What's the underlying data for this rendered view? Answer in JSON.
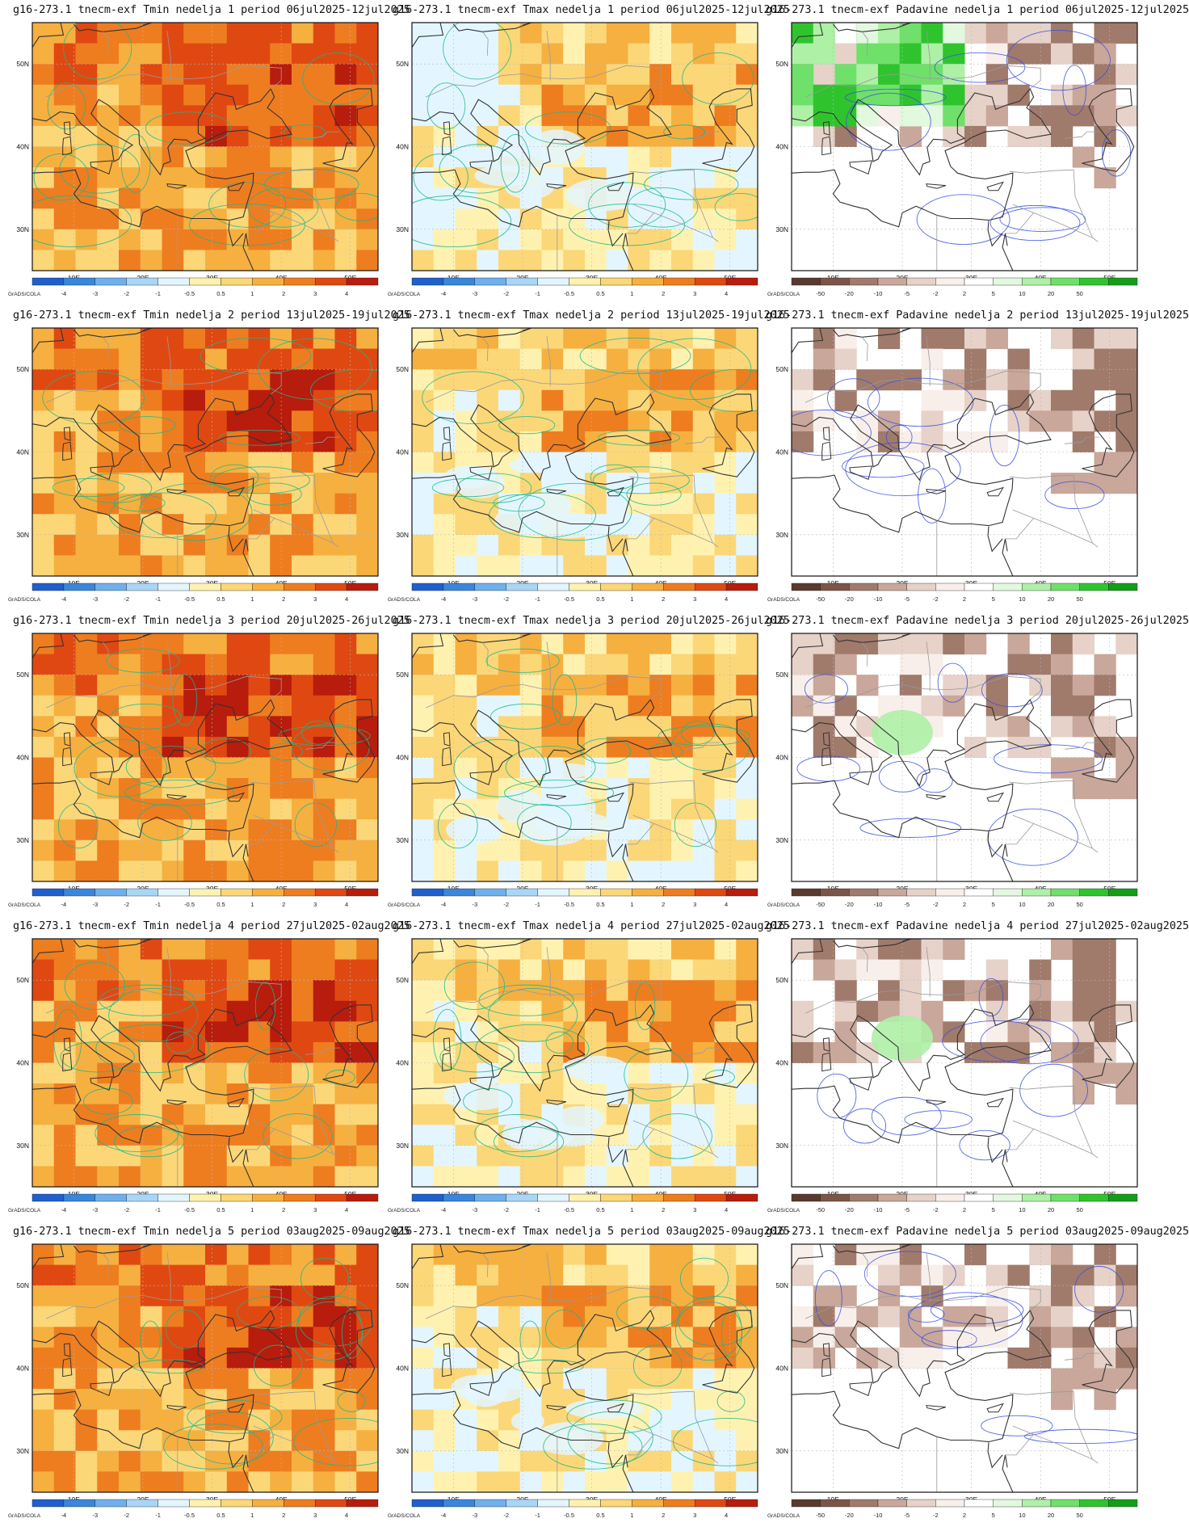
{
  "lat_labels": [
    "50N",
    "40N",
    "30N"
  ],
  "lon_labels": [
    "10E",
    "20E",
    "30E",
    "40E",
    "50E"
  ],
  "legend_credit": "GrADS/COLA",
  "temp_legend": {
    "colors": [
      "#1f5fce",
      "#3a86db",
      "#6fb0ec",
      "#a9d6f7",
      "#e3f6ff",
      "#fff2b0",
      "#fbd778",
      "#f6b040",
      "#ee7d20",
      "#e04812",
      "#b71c0c"
    ],
    "labels": [
      "-4",
      "-3",
      "-2",
      "-1",
      "-0.5",
      "0.5",
      "1",
      "2",
      "3",
      "4"
    ]
  },
  "precip_legend": {
    "colors": [
      "#5a3a2e",
      "#7d5547",
      "#a07a6b",
      "#c9a79a",
      "#e6d2c8",
      "#f8efea",
      "#ffffff",
      "#e2f8df",
      "#aef0a6",
      "#6fe06a",
      "#2fc42e",
      "#149e18"
    ],
    "labels": [
      "-50",
      "-20",
      "-10",
      "-5",
      "-2",
      "2",
      "5",
      "10",
      "20",
      "50"
    ]
  },
  "panels": [
    {
      "title": "g16-273.1  tnecm-exf  Tmin  nedelja 1  period 06jul2025-12jul2025",
      "kind": "tmin",
      "week": 1
    },
    {
      "title": "g16-273.1  tnecm-exf  Tmax  nedelja 1  period 06jul2025-12jul2025",
      "kind": "tmax",
      "week": 1
    },
    {
      "title": "g16-273.1  tnecm-exf  Padavine  nedelja 1  period 06jul2025-12jul2025",
      "kind": "precip",
      "week": 1
    },
    {
      "title": "g16-273.1  tnecm-exf  Tmin  nedelja 2  period 13jul2025-19jul2025",
      "kind": "tmin",
      "week": 2
    },
    {
      "title": "g16-273.1  tnecm-exf  Tmax  nedelja 2  period 13jul2025-19jul2025",
      "kind": "tmax",
      "week": 2
    },
    {
      "title": "g16-273.1  tnecm-exf  Padavine  nedelja 2  period 13jul2025-19jul2025",
      "kind": "precip",
      "week": 2
    },
    {
      "title": "g16-273.1  tnecm-exf  Tmin  nedelja 3  period 20jul2025-26jul2025",
      "kind": "tmin",
      "week": 3
    },
    {
      "title": "g16-273.1  tnecm-exf  Tmax  nedelja 3  period 20jul2025-26jul2025",
      "kind": "tmax",
      "week": 3
    },
    {
      "title": "g16-273.1  tnecm-exf  Padavine  nedelja 3  period 20jul2025-26jul2025",
      "kind": "precip",
      "week": 3
    },
    {
      "title": "g16-273.1  tnecm-exf  Tmin  nedelja 4  period 27jul2025-02aug2025",
      "kind": "tmin",
      "week": 4
    },
    {
      "title": "g16-273.1  tnecm-exf  Tmax  nedelja 4  period 27jul2025-02aug2025",
      "kind": "tmax",
      "week": 4
    },
    {
      "title": "g16-273.1  tnecm-exf  Padavine  nedelja 4  period 27jul2025-02aug2025",
      "kind": "precip",
      "week": 4
    },
    {
      "title": "g16-273.1  tnecm-exf  Tmin  nedelja 5  period 03aug2025-09aug2025",
      "kind": "tmin",
      "week": 5
    },
    {
      "title": "g16-273.1  tnecm-exf  Tmax  nedelja 5  period 03aug2025-09aug2025",
      "kind": "tmax",
      "week": 5
    },
    {
      "title": "g16-273.1  tnecm-exf  Padavine  nedelja 5  period 03aug2025-09aug2025",
      "kind": "precip",
      "week": 5
    }
  ]
}
